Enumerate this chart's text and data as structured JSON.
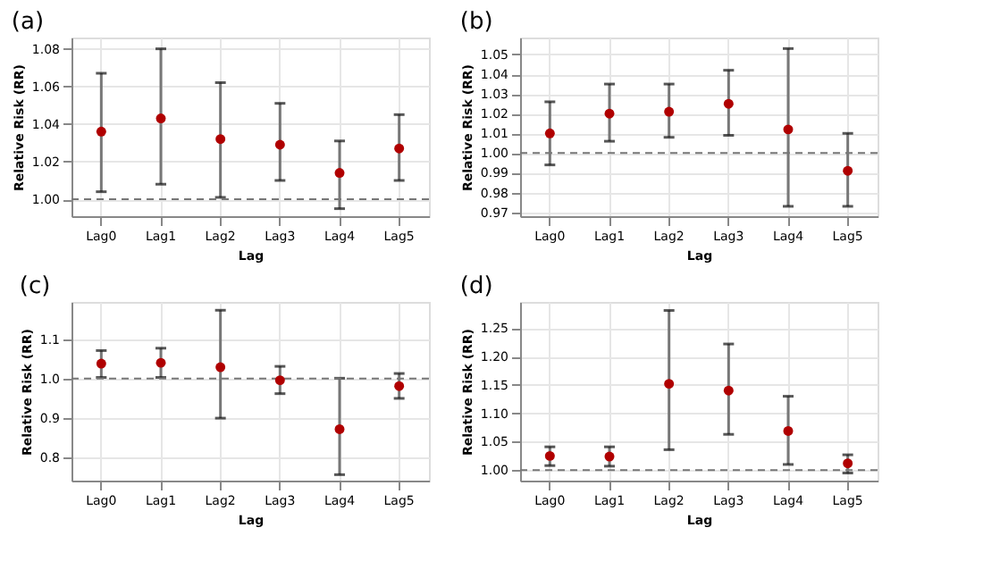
{
  "chart_data": [
    {
      "type": "scatter",
      "title": "(a)",
      "xlabel": "Lag",
      "ylabel": "Relative Risk (RR)",
      "categories": [
        "Lag0",
        "Lag1",
        "Lag2",
        "Lag3",
        "Lag4",
        "Lag5"
      ],
      "series": [
        {
          "color": "#b00000",
          "values": [
            1.036,
            1.043,
            1.032,
            1.029,
            1.014,
            1.027
          ],
          "errors": [
            [
              1.004,
              1.067
            ],
            [
              1.008,
              1.08
            ],
            [
              1.001,
              1.062
            ],
            [
              1.01,
              1.051
            ],
            [
              0.995,
              1.031
            ],
            [
              1.01,
              1.045
            ]
          ]
        }
      ],
      "ylim": [
        0.991,
        1.086
      ],
      "yticks": [
        {
          "value": 1.0,
          "label": "1.00"
        },
        1.02,
        1.04,
        1.06,
        1.08
      ],
      "grid": true,
      "marker": "circle",
      "ref_lines": [
        {
          "axis": "y",
          "value": 1.0,
          "color": "#777777",
          "line_style": "dashed"
        }
      ]
    },
    {
      "type": "scatter",
      "title": "(b)",
      "xlabel": "Lag",
      "ylabel": "Relative Risk (RR)",
      "categories": [
        "Lag0",
        "Lag1",
        "Lag2",
        "Lag3",
        "Lag4",
        "Lag5"
      ],
      "series": [
        {
          "color": "#b00000",
          "values": [
            1.01,
            1.02,
            1.021,
            1.025,
            1.012,
            0.991
          ],
          "errors": [
            [
              0.994,
              1.026
            ],
            [
              1.006,
              1.035
            ],
            [
              1.008,
              1.035
            ],
            [
              1.009,
              1.042
            ],
            [
              0.973,
              1.053
            ],
            [
              0.973,
              1.01
            ]
          ]
        }
      ],
      "ylim": [
        0.968,
        1.0586
      ],
      "yticks": [
        0.97,
        0.98,
        0.99,
        {
          "value": 1.0,
          "label": "1.00"
        },
        1.01,
        1.02,
        1.03,
        1.04,
        1.05
      ],
      "grid": true,
      "marker": "circle",
      "ref_lines": [
        {
          "axis": "y",
          "value": 1.0,
          "color": "#777777",
          "line_style": "dashed"
        }
      ]
    },
    {
      "type": "scatter",
      "title": "(c)",
      "xlabel": "Lag",
      "ylabel": "Relative Risk (RR)",
      "categories": [
        "Lag0",
        "Lag1",
        "Lag2",
        "Lag3",
        "Lag4",
        "Lag5"
      ],
      "series": [
        {
          "color": "#b00000",
          "values": [
            1.038,
            1.04,
            1.029,
            0.996,
            0.872,
            0.981
          ],
          "errors": [
            [
              1.003,
              1.071
            ],
            [
              1.003,
              1.077
            ],
            [
              0.9,
              1.173
            ],
            [
              0.962,
              1.031
            ],
            [
              0.757,
              1.001
            ],
            [
              0.95,
              1.013
            ]
          ]
        }
      ],
      "ylim": [
        0.742,
        1.194
      ],
      "yticks": [
        0.8,
        0.9,
        {
          "value": 1.0,
          "label": "1.0"
        },
        1.1
      ],
      "grid": true,
      "marker": "circle",
      "ref_lines": [
        {
          "axis": "y",
          "value": 1.0,
          "color": "#777777",
          "line_style": "dashed"
        }
      ]
    },
    {
      "type": "scatter",
      "title": "(d)",
      "xlabel": "Lag",
      "ylabel": "Relative Risk (RR)",
      "categories": [
        "Lag0",
        "Lag1",
        "Lag2",
        "Lag3",
        "Lag4",
        "Lag5"
      ],
      "series": [
        {
          "color": "#b00000",
          "values": [
            1.025,
            1.024,
            1.152,
            1.14,
            1.069,
            1.012
          ],
          "errors": [
            [
              1.008,
              1.041
            ],
            [
              1.007,
              1.041
            ],
            [
              1.036,
              1.281
            ],
            [
              1.063,
              1.222
            ],
            [
              1.01,
              1.13
            ],
            [
              0.995,
              1.027
            ]
          ]
        }
      ],
      "ylim": [
        0.9816,
        1.296
      ],
      "yticks": [
        {
          "value": 1.0,
          "label": "1.00"
        },
        1.05,
        {
          "value": 1.1,
          "label": "1.10"
        },
        1.15,
        {
          "value": 1.2,
          "label": "1.20"
        },
        1.25
      ],
      "grid": true,
      "marker": "circle",
      "ref_lines": [
        {
          "axis": "y",
          "value": 1.0,
          "color": "#777777",
          "line_style": "dashed"
        }
      ]
    }
  ]
}
